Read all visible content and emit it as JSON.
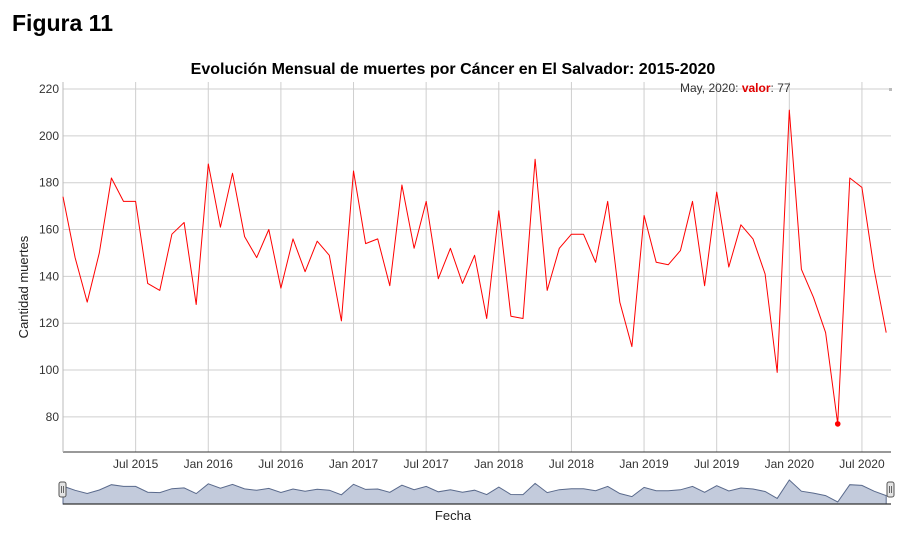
{
  "figure_label": "Figura 11",
  "chart_data": {
    "type": "line",
    "title": "Evolución Mensual de muertes por Cáncer en El Salvador: 2015-2020",
    "xlabel": "Fecha",
    "ylabel": "Cantidad muertes",
    "ylim": [
      65,
      223
    ],
    "y_ticks": [
      80,
      100,
      120,
      140,
      160,
      180,
      200,
      220
    ],
    "x_tick_labels": [
      "Jul 2015",
      "Jan 2016",
      "Jul 2016",
      "Jan 2017",
      "Jul 2017",
      "Jan 2018",
      "Jul 2018",
      "Jan 2019",
      "Jul 2019",
      "Jan 2020",
      "Jul 2020"
    ],
    "grid": true,
    "series": [
      {
        "color": "#ff0000",
        "x": [
          "2015-01",
          "2015-02",
          "2015-03",
          "2015-04",
          "2015-05",
          "2015-06",
          "2015-07",
          "2015-08",
          "2015-09",
          "2015-10",
          "2015-11",
          "2015-12",
          "2016-01",
          "2016-02",
          "2016-03",
          "2016-04",
          "2016-05",
          "2016-06",
          "2016-07",
          "2016-08",
          "2016-09",
          "2016-10",
          "2016-11",
          "2016-12",
          "2017-01",
          "2017-02",
          "2017-03",
          "2017-04",
          "2017-05",
          "2017-06",
          "2017-07",
          "2017-08",
          "2017-09",
          "2017-10",
          "2017-11",
          "2017-12",
          "2018-01",
          "2018-02",
          "2018-03",
          "2018-04",
          "2018-05",
          "2018-06",
          "2018-07",
          "2018-08",
          "2018-09",
          "2018-10",
          "2018-11",
          "2018-12",
          "2019-01",
          "2019-02",
          "2019-03",
          "2019-04",
          "2019-05",
          "2019-06",
          "2019-07",
          "2019-08",
          "2019-09",
          "2019-10",
          "2019-11",
          "2019-12",
          "2020-01",
          "2020-02",
          "2020-03",
          "2020-04",
          "2020-05",
          "2020-06",
          "2020-07",
          "2020-08",
          "2020-09"
        ],
        "values": [
          174,
          148,
          129,
          150,
          182,
          172,
          172,
          137,
          134,
          158,
          163,
          128,
          188,
          161,
          184,
          157,
          148,
          160,
          135,
          156,
          142,
          155,
          149,
          121,
          185,
          154,
          156,
          136,
          179,
          152,
          172,
          139,
          152,
          137,
          149,
          122,
          168,
          123,
          122,
          190,
          134,
          152,
          158,
          158,
          146,
          172,
          129,
          110,
          166,
          146,
          145,
          151,
          172,
          136,
          176,
          144,
          162,
          156,
          141,
          99,
          211,
          143,
          131,
          116,
          77,
          182,
          178,
          143,
          116
        ]
      }
    ],
    "highlight": {
      "date_label": "May, 2020",
      "key": "valor",
      "value": 77
    }
  },
  "navigator": {
    "handle_left": "left-handle",
    "handle_right": "right-handle"
  }
}
